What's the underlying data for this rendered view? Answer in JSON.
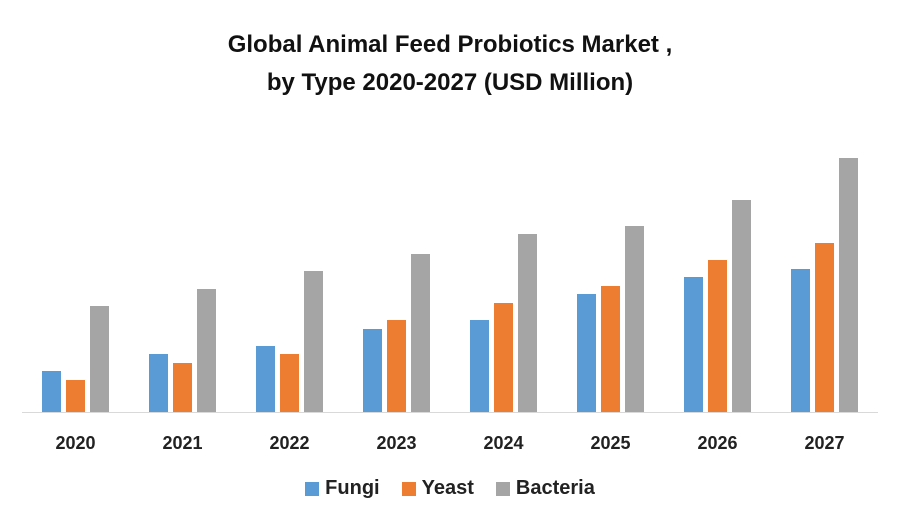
{
  "chart_data": {
    "type": "bar",
    "title_line1": "Global Animal Feed Probiotics Market ,",
    "title_line2": "by Type 2020-2027 (USD Million)",
    "xlabel": "",
    "ylabel": "",
    "categories": [
      "2020",
      "2021",
      "2022",
      "2023",
      "2024",
      "2025",
      "2026",
      "2027"
    ],
    "series": [
      {
        "name": "Fungi",
        "color": "#5b9bd5",
        "values": [
          41,
          58,
          66,
          83,
          92,
          118,
          135,
          143
        ]
      },
      {
        "name": "Yeast",
        "color": "#ed7d31",
        "values": [
          32,
          49,
          58,
          92,
          109,
          126,
          152,
          169
        ]
      },
      {
        "name": "Bacteria",
        "color": "#a5a5a5",
        "values": [
          106,
          123,
          141,
          158,
          178,
          186,
          212,
          254
        ]
      }
    ],
    "ylim": [
      0,
      260
    ],
    "grid": false,
    "legend": "bottom"
  }
}
